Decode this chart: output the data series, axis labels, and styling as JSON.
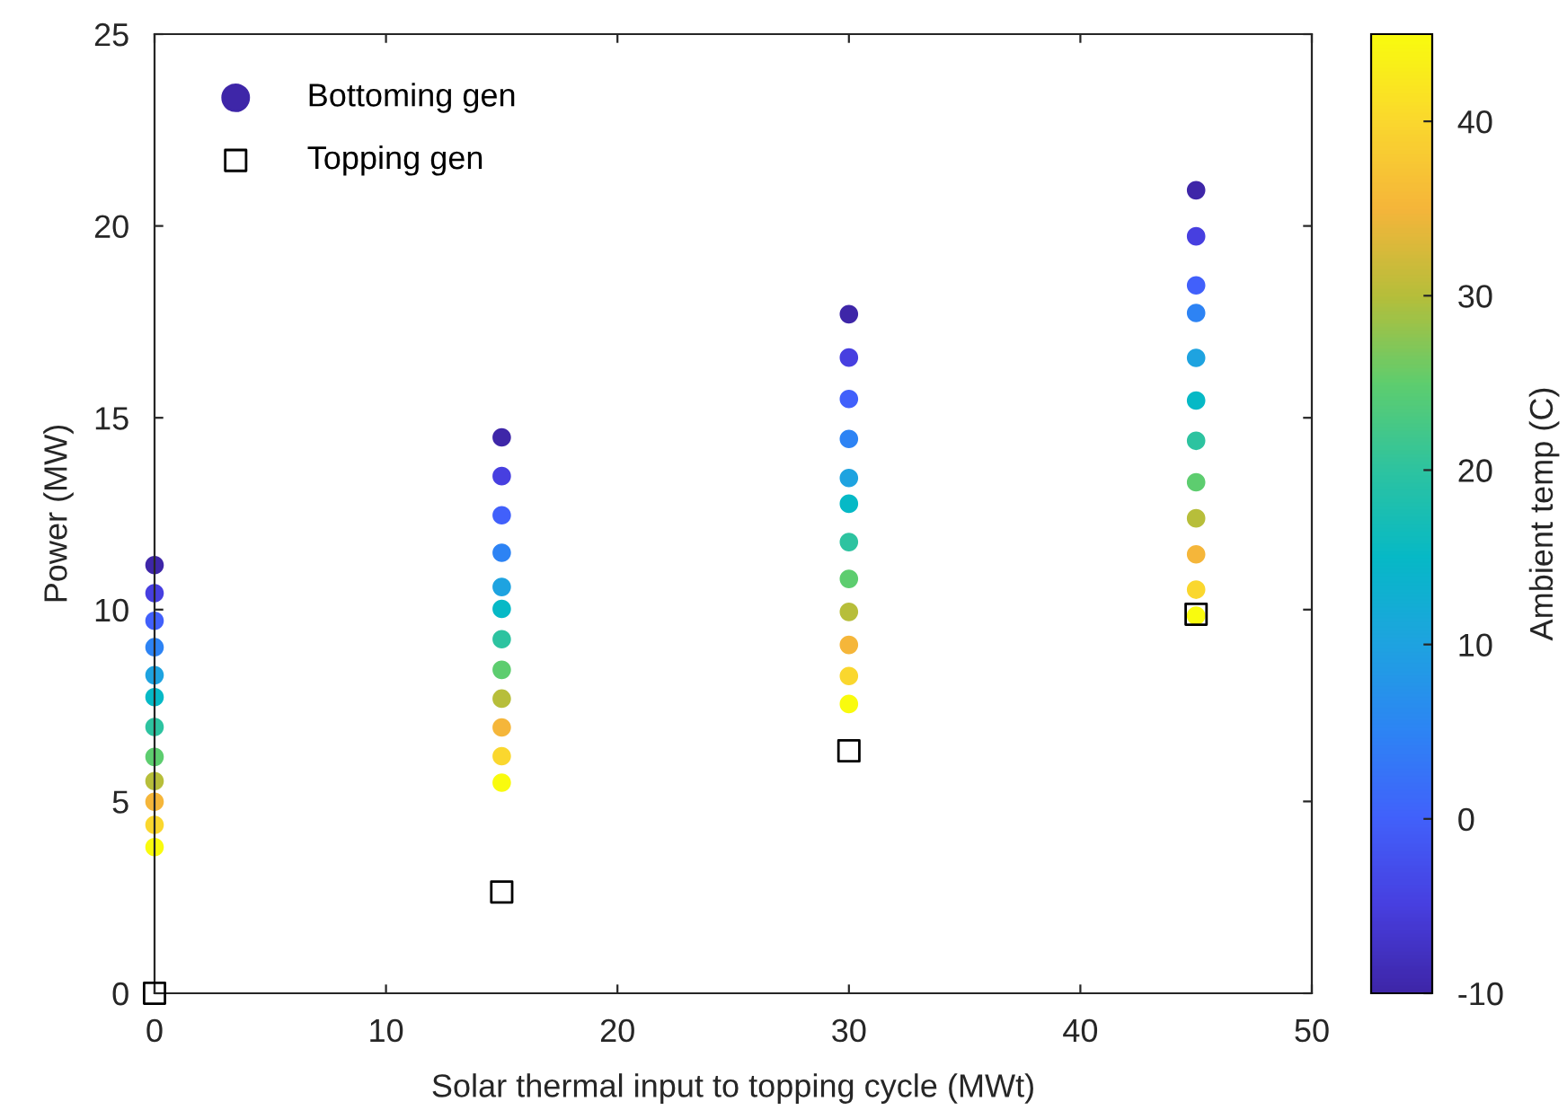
{
  "chart_data": {
    "type": "scatter",
    "xlabel": "Solar thermal input to topping cycle (MWt)",
    "ylabel": "Power (MW)",
    "clabel": "Ambient temp (C)",
    "xlim": [
      0,
      50
    ],
    "xticks": [
      0,
      10,
      20,
      30,
      40,
      50
    ],
    "ylim": [
      0,
      25
    ],
    "yticks": [
      0,
      5,
      10,
      15,
      20,
      25
    ],
    "clim": [
      -10,
      45
    ],
    "cticks": [
      -10,
      0,
      10,
      20,
      30,
      40
    ],
    "grid": false,
    "legend": "top left",
    "series": [
      {
        "name": "Bottoming gen",
        "marker": "circle",
        "colors": [
          "#3e26a8",
          "#473fe0",
          "#4161fb",
          "#2d84f4",
          "#1ea3e0",
          "#06b9c6",
          "#2dc3a0",
          "#5ecd6e",
          "#b5be3a",
          "#f5b53a",
          "#fad72e",
          "#f9fb0e",
          "#3e26a8",
          "#473fe0",
          "#4161fb",
          "#2d84f4",
          "#1ea3e0",
          "#06b9c6",
          "#2dc3a0",
          "#5ecd6e",
          "#b5be3a",
          "#f5b53a",
          "#fad72e",
          "#f9fb0e",
          "#3e26a8",
          "#473fe0",
          "#4161fb",
          "#2d84f4",
          "#1ea3e0",
          "#06b9c6",
          "#2dc3a0",
          "#5ecd6e",
          "#b5be3a",
          "#f5b53a",
          "#fad72e",
          "#f9fb0e",
          "#3e26a8",
          "#473fe0",
          "#4161fb",
          "#2d84f4",
          "#1ea3e0",
          "#06b9c6",
          "#2dc3a0",
          "#5ecd6e",
          "#b5be3a",
          "#f5b53a",
          "#fad72e",
          "#f9fb0e"
        ],
        "x": [
          0,
          0,
          0,
          0,
          0,
          0,
          0,
          0,
          0,
          0,
          0,
          0,
          15,
          15,
          15,
          15,
          15,
          15,
          15,
          15,
          15,
          15,
          15,
          15,
          30,
          30,
          30,
          30,
          30,
          30,
          30,
          30,
          30,
          30,
          30,
          30,
          45,
          45,
          45,
          45,
          45,
          45,
          45,
          45,
          45,
          45,
          45,
          45
        ],
        "values": [
          11.16,
          10.43,
          9.71,
          9.02,
          8.29,
          7.72,
          6.94,
          6.16,
          5.53,
          4.99,
          4.39,
          3.81,
          14.49,
          13.48,
          12.46,
          11.48,
          10.59,
          10.02,
          9.23,
          8.43,
          7.68,
          6.93,
          6.18,
          5.49,
          17.7,
          16.57,
          15.49,
          14.45,
          13.43,
          12.76,
          11.76,
          10.8,
          9.94,
          9.08,
          8.27,
          7.54,
          20.93,
          19.73,
          18.45,
          17.73,
          16.56,
          15.45,
          14.4,
          13.32,
          12.38,
          11.44,
          10.52,
          9.84
        ],
        "cvalues": [
          -10,
          -5,
          0,
          5,
          10,
          15,
          20,
          25,
          30,
          35,
          40,
          45,
          -10,
          -5,
          0,
          5,
          10,
          15,
          20,
          25,
          30,
          35,
          40,
          45,
          -10,
          -5,
          0,
          5,
          10,
          15,
          20,
          25,
          30,
          35,
          40,
          45,
          -10,
          -5,
          0,
          5,
          10,
          15,
          20,
          25,
          30,
          35,
          40,
          45
        ]
      },
      {
        "name": "Topping gen",
        "color": "#000000",
        "marker": "square",
        "x": [
          0,
          15,
          30,
          45
        ],
        "values": [
          0,
          2.64,
          6.32,
          9.88
        ]
      }
    ]
  }
}
